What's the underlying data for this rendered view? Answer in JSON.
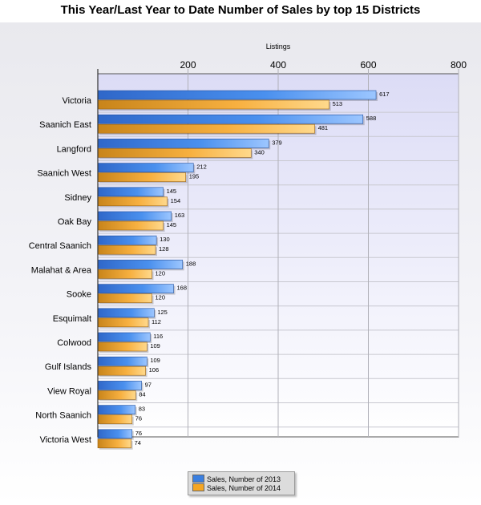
{
  "chart_data": {
    "type": "bar",
    "orientation": "horizontal",
    "title": "This Year/Last Year to Date Number of Sales by top 15 Districts",
    "xlabel": "Listings",
    "xlim": [
      0,
      800
    ],
    "xticks": [
      200,
      400,
      600,
      800
    ],
    "grid": true,
    "legend_position": "bottom",
    "categories": [
      "Victoria",
      "Saanich East",
      "Langford",
      "Saanich West",
      "Sidney",
      "Oak Bay",
      "Central Saanich",
      "Malahat & Area",
      "Sooke",
      "Esquimalt",
      "Colwood",
      "Gulf Islands",
      "View Royal",
      "North Saanich",
      "Victoria West"
    ],
    "series": [
      {
        "name": "Sales, Number of 2013",
        "color": "#3a7fe0",
        "values": [
          617,
          588,
          379,
          212,
          145,
          163,
          130,
          188,
          168,
          125,
          116,
          109,
          97,
          83,
          76
        ]
      },
      {
        "name": "Sales, Number of 2014",
        "color": "#f5a623",
        "values": [
          513,
          481,
          340,
          195,
          154,
          145,
          128,
          120,
          120,
          112,
          109,
          106,
          84,
          76,
          74
        ]
      }
    ]
  }
}
